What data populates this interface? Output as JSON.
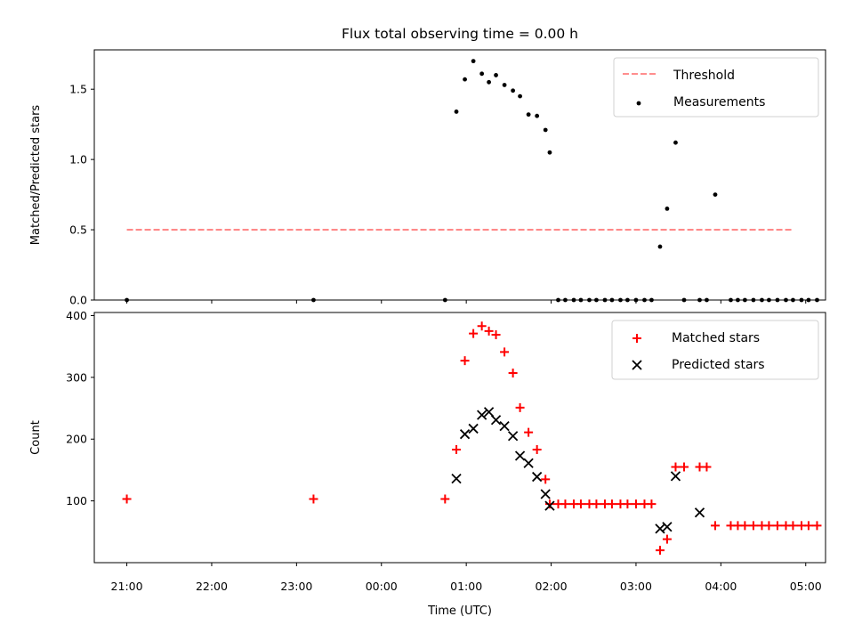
{
  "chart_data": [
    {
      "type": "scatter",
      "title": "Flux total observing time = 0.00 h",
      "ylabel": "Matched/Predicted stars",
      "xlabel": "",
      "xlim": [
        "20:37",
        "05:14"
      ],
      "ylim": [
        0,
        1.78
      ],
      "yticks": [
        "0.0",
        "0.5",
        "1.0",
        "1.5"
      ],
      "legend_position": "top-right",
      "series": [
        {
          "name": "Threshold",
          "kind": "dashed-line",
          "color": "#ff7f7f",
          "x": [
            "21:00",
            "04:50"
          ],
          "y": [
            0.5,
            0.5
          ]
        },
        {
          "name": "Measurements",
          "kind": "points",
          "color": "#000000",
          "x": [
            "21:00",
            "23:12",
            "00:45",
            "00:53",
            "00:59",
            "01:05",
            "01:11",
            "01:16",
            "01:21",
            "01:27",
            "01:33",
            "01:38",
            "01:44",
            "01:50",
            "01:56",
            "01:59",
            "02:05",
            "02:10",
            "02:16",
            "02:21",
            "02:27",
            "02:32",
            "02:38",
            "02:43",
            "02:49",
            "02:54",
            "03:00",
            "03:06",
            "03:11",
            "03:17",
            "03:22",
            "03:28",
            "03:34",
            "03:45",
            "03:50",
            "03:56",
            "04:07",
            "04:12",
            "04:17",
            "04:23",
            "04:29",
            "04:34",
            "04:40",
            "04:46",
            "04:51",
            "04:57",
            "05:02",
            "05:08"
          ],
          "y": [
            0,
            0,
            0,
            1.34,
            1.57,
            1.7,
            1.61,
            1.55,
            1.6,
            1.53,
            1.49,
            1.45,
            1.32,
            1.31,
            1.21,
            1.05,
            0,
            0,
            0,
            0,
            0,
            0,
            0,
            0,
            0,
            0,
            0,
            0,
            0,
            0.38,
            0.65,
            1.12,
            0,
            0,
            0,
            0.75,
            0,
            0,
            0,
            0,
            0,
            0,
            0,
            0,
            0,
            0,
            0,
            0
          ]
        }
      ]
    },
    {
      "type": "scatter",
      "title": "",
      "ylabel": "Count",
      "xlabel": "Time (UTC)",
      "xlim": [
        "20:37",
        "05:14"
      ],
      "ylim": [
        0,
        405
      ],
      "yticks": [
        "100",
        "200",
        "300",
        "400"
      ],
      "xticks": [
        "21:00",
        "22:00",
        "23:00",
        "00:00",
        "01:00",
        "02:00",
        "03:00",
        "04:00",
        "05:00"
      ],
      "legend_position": "top-right",
      "series": [
        {
          "name": "Matched stars",
          "marker": "plus",
          "color": "#ff0000",
          "x": [
            "21:00",
            "23:12",
            "00:45",
            "00:53",
            "00:59",
            "01:05",
            "01:11",
            "01:16",
            "01:21",
            "01:27",
            "01:33",
            "01:38",
            "01:44",
            "01:50",
            "01:56",
            "01:59",
            "02:05",
            "02:10",
            "02:16",
            "02:21",
            "02:27",
            "02:32",
            "02:38",
            "02:43",
            "02:49",
            "02:54",
            "03:00",
            "03:06",
            "03:11",
            "03:17",
            "03:22",
            "03:28",
            "03:34",
            "03:45",
            "03:50",
            "03:56",
            "04:07",
            "04:12",
            "04:17",
            "04:23",
            "04:29",
            "04:34",
            "04:40",
            "04:46",
            "04:51",
            "04:57",
            "05:02",
            "05:08"
          ],
          "y": [
            103,
            103,
            103,
            183,
            327,
            371,
            383,
            375,
            369,
            341,
            307,
            251,
            211,
            183,
            135,
            95,
            95,
            95,
            95,
            95,
            95,
            95,
            95,
            95,
            95,
            95,
            95,
            95,
            95,
            20,
            38,
            155,
            155,
            155,
            155,
            60,
            60,
            60,
            60,
            60,
            60,
            60,
            60,
            60,
            60,
            60,
            60,
            60
          ]
        },
        {
          "name": "Predicted stars",
          "marker": "x",
          "color": "#000000",
          "x": [
            "00:53",
            "00:59",
            "01:05",
            "01:11",
            "01:16",
            "01:21",
            "01:27",
            "01:33",
            "01:38",
            "01:44",
            "01:50",
            "01:56",
            "01:59",
            "03:17",
            "03:22",
            "03:28",
            "03:45"
          ],
          "y": [
            136,
            208,
            217,
            239,
            244,
            231,
            221,
            205,
            173,
            161,
            139,
            111,
            92,
            55,
            58,
            140,
            81
          ]
        }
      ]
    }
  ]
}
